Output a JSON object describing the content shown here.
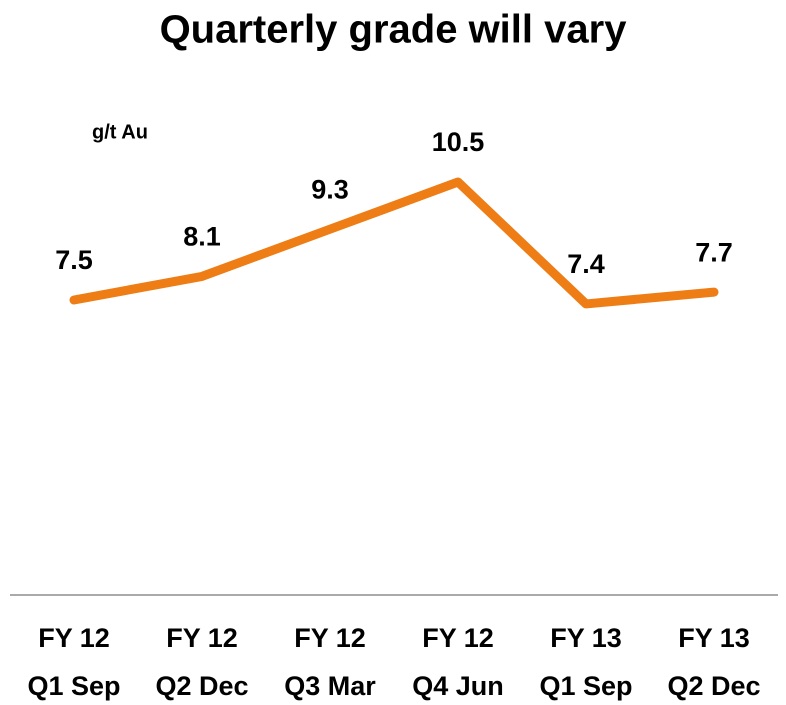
{
  "chart_data": {
    "type": "line",
    "title": "Quarterly grade will vary",
    "y_label": "g/t Au",
    "categories": [
      [
        "FY 12",
        "Q1 Sep"
      ],
      [
        "FY 12",
        "Q2 Dec"
      ],
      [
        "FY 12",
        "Q3 Mar"
      ],
      [
        "FY 12",
        "Q4 Jun"
      ],
      [
        "FY 13",
        "Q1 Sep"
      ],
      [
        "FY 13",
        "Q2 Dec"
      ]
    ],
    "values": [
      7.5,
      8.1,
      9.3,
      10.5,
      7.4,
      7.7
    ],
    "color": "#ed7d14",
    "ylim": [
      0,
      12
    ],
    "grid": false
  }
}
